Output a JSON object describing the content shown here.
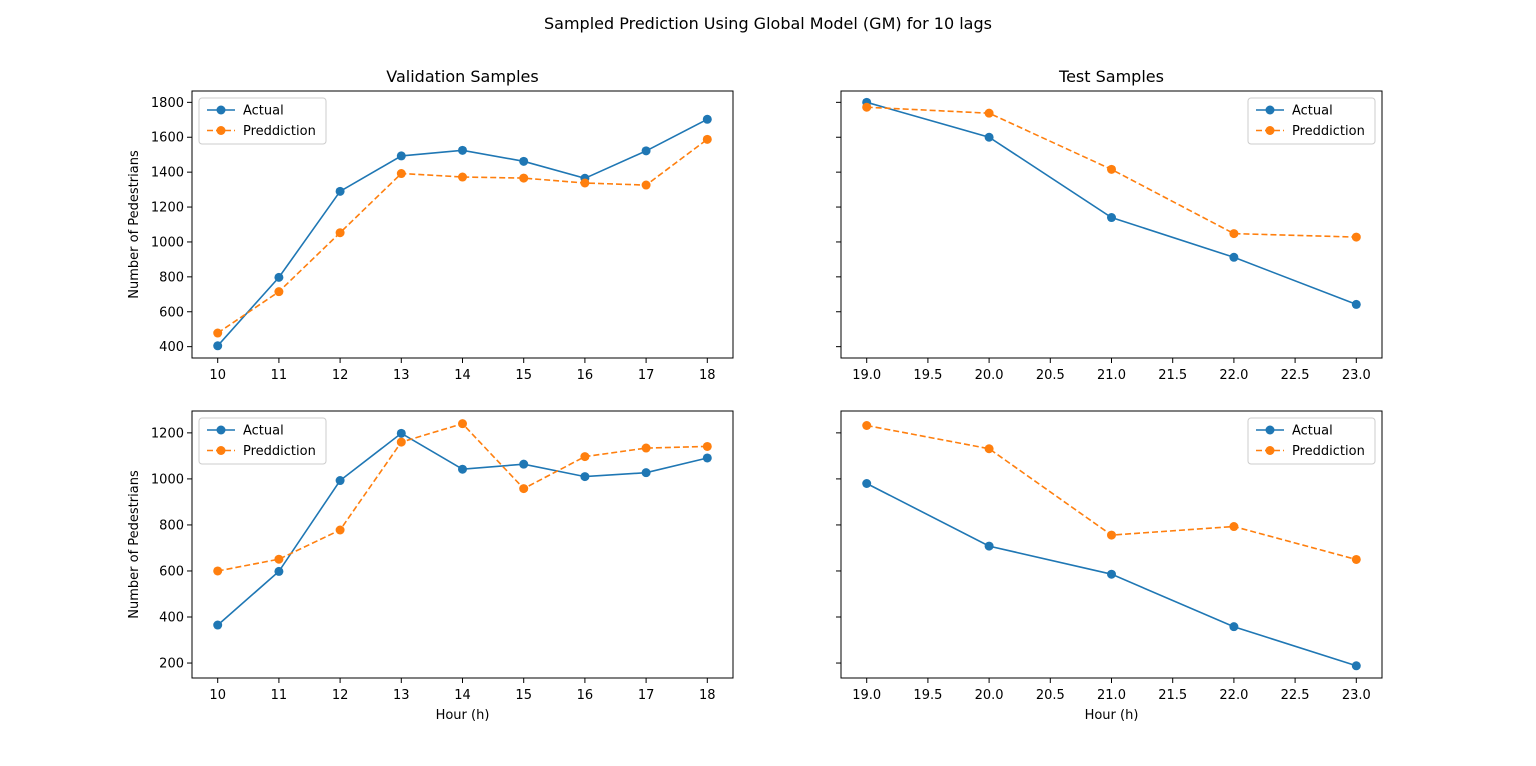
{
  "figure": {
    "suptitle": "Sampled Prediction Using Global Model (GM) for 10 lags"
  },
  "colors": {
    "actual": "#1f77b4",
    "prediction": "#ff7f0e"
  },
  "chart_data": [
    {
      "type": "line",
      "title": "Validation Samples",
      "xlabel": "",
      "ylabel": "Number of Pedestrians",
      "x": [
        10,
        11,
        12,
        13,
        14,
        15,
        16,
        17,
        18
      ],
      "xticks": [
        10,
        11,
        12,
        13,
        14,
        15,
        16,
        17,
        18
      ],
      "xtick_labels": [
        "10",
        "11",
        "12",
        "13",
        "14",
        "15",
        "16",
        "17",
        "18"
      ],
      "xlim": [
        9.58,
        18.42
      ],
      "ylim": [
        335,
        1865
      ],
      "yticks": [
        400,
        600,
        800,
        1000,
        1200,
        1400,
        1600,
        1800
      ],
      "ytick_labels": [
        "400",
        "600",
        "800",
        "1000",
        "1200",
        "1400",
        "1600",
        "1800"
      ],
      "legend": "top-left",
      "series": [
        {
          "name": "Actual",
          "style": "solid",
          "values": [
            405,
            797,
            1290,
            1493,
            1525,
            1462,
            1365,
            1522,
            1703
          ]
        },
        {
          "name": "Preddiction",
          "style": "dashed",
          "values": [
            478,
            715,
            1053,
            1392,
            1372,
            1366,
            1338,
            1326,
            1588
          ]
        }
      ]
    },
    {
      "type": "line",
      "title": "Test Samples",
      "xlabel": "",
      "ylabel": "",
      "x": [
        19,
        20,
        21,
        22,
        23
      ],
      "xticks": [
        19.0,
        19.5,
        20.0,
        20.5,
        21.0,
        21.5,
        22.0,
        22.5,
        23.0
      ],
      "xtick_labels": [
        "19.0",
        "19.5",
        "20.0",
        "20.5",
        "21.0",
        "21.5",
        "22.0",
        "22.5",
        "23.0"
      ],
      "xlim": [
        18.79,
        23.21
      ],
      "ylim": [
        335,
        1865
      ],
      "yticks": [
        400,
        600,
        800,
        1000,
        1200,
        1400,
        1600,
        1800
      ],
      "ytick_labels": [],
      "legend": "top-right",
      "series": [
        {
          "name": "Actual",
          "style": "solid",
          "values": [
            1800,
            1600,
            1140,
            912,
            642
          ]
        },
        {
          "name": "Preddiction",
          "style": "dashed",
          "values": [
            1772,
            1738,
            1416,
            1048,
            1028
          ]
        }
      ]
    },
    {
      "type": "line",
      "title": "",
      "xlabel": "Hour (h)",
      "ylabel": "Number of Pedestrians",
      "x": [
        10,
        11,
        12,
        13,
        14,
        15,
        16,
        17,
        18
      ],
      "xticks": [
        10,
        11,
        12,
        13,
        14,
        15,
        16,
        17,
        18
      ],
      "xtick_labels": [
        "10",
        "11",
        "12",
        "13",
        "14",
        "15",
        "16",
        "17",
        "18"
      ],
      "xlim": [
        9.58,
        18.42
      ],
      "ylim": [
        135,
        1295
      ],
      "yticks": [
        200,
        400,
        600,
        800,
        1000,
        1200
      ],
      "ytick_labels": [
        "200",
        "400",
        "600",
        "800",
        "1000",
        "1200"
      ],
      "legend": "top-left",
      "series": [
        {
          "name": "Actual",
          "style": "solid",
          "values": [
            365,
            598,
            993,
            1198,
            1042,
            1064,
            1010,
            1027,
            1091
          ]
        },
        {
          "name": "Preddiction",
          "style": "dashed",
          "values": [
            600,
            651,
            778,
            1160,
            1240,
            958,
            1097,
            1134,
            1141
          ]
        }
      ]
    },
    {
      "type": "line",
      "title": "",
      "xlabel": "Hour (h)",
      "ylabel": "",
      "x": [
        19,
        20,
        21,
        22,
        23
      ],
      "xticks": [
        19.0,
        19.5,
        20.0,
        20.5,
        21.0,
        21.5,
        22.0,
        22.5,
        23.0
      ],
      "xtick_labels": [
        "19.0",
        "19.5",
        "20.0",
        "20.5",
        "21.0",
        "21.5",
        "22.0",
        "22.5",
        "23.0"
      ],
      "xlim": [
        18.79,
        23.21
      ],
      "ylim": [
        135,
        1295
      ],
      "yticks": [
        200,
        400,
        600,
        800,
        1000,
        1200
      ],
      "ytick_labels": [],
      "legend": "top-right",
      "series": [
        {
          "name": "Actual",
          "style": "solid",
          "values": [
            980,
            708,
            586,
            358,
            188
          ]
        },
        {
          "name": "Preddiction",
          "style": "dashed",
          "values": [
            1232,
            1131,
            756,
            793,
            650
          ]
        }
      ]
    }
  ]
}
